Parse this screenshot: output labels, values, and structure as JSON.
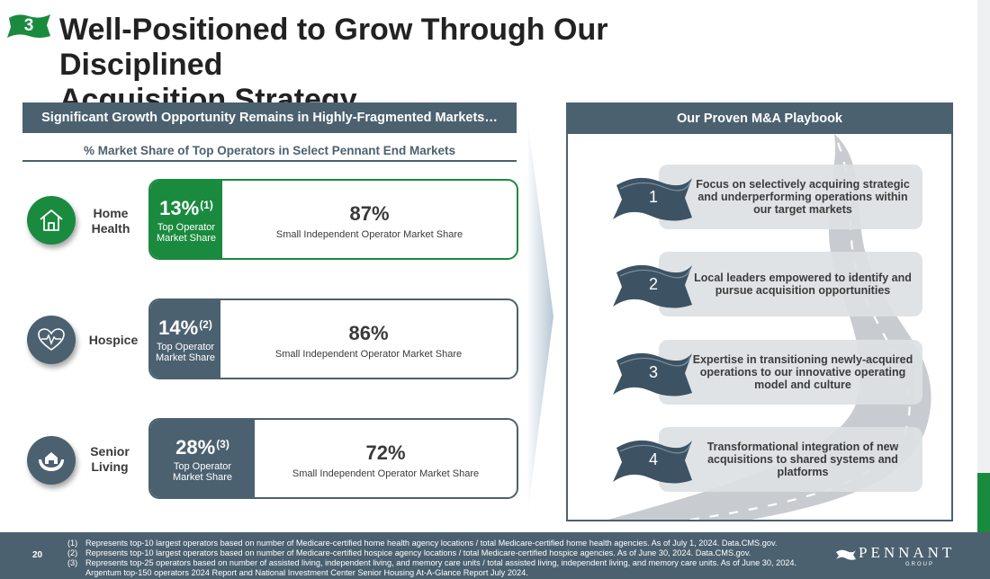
{
  "slide": {
    "section_number": "3",
    "title_line1": "Well-Positioned to Grow Through Our Disciplined",
    "title_line2": "Acquisition Strategy"
  },
  "left": {
    "header": "Significant Growth Opportunity Remains in Highly-Fragmented Markets…",
    "subheader": "% Market Share of Top Operators in Select Pennant End Markets",
    "markets": [
      {
        "label_line1": "Home",
        "label_line2": "Health",
        "icon": "house-icon",
        "top_share": "13%",
        "top_ref": "(1)",
        "top_caption_line1": "Top Operator",
        "top_caption_line2": "Market Share",
        "small_share": "87%",
        "small_caption": "Small Independent Operator Market Share",
        "accent": "#1a8a3f"
      },
      {
        "label_line1": "Hospice",
        "label_line2": "",
        "icon": "heart-pulse-icon",
        "top_share": "14%",
        "top_ref": "(2)",
        "top_caption_line1": "Top Operator",
        "top_caption_line2": "Market Share",
        "small_share": "86%",
        "small_caption": "Small Independent Operator Market Share",
        "accent": "#4b6170"
      },
      {
        "label_line1": "Senior",
        "label_line2": "Living",
        "icon": "hands-house-icon",
        "top_share": "28%",
        "top_ref": "(3)",
        "top_caption_line1": "Top Operator",
        "top_caption_line2": "Market Share",
        "small_share": "72%",
        "small_caption": "Small Independent Operator Market Share",
        "accent": "#4b6170"
      }
    ]
  },
  "right": {
    "header": "Our Proven M&A Playbook",
    "steps": [
      {
        "number": "1",
        "text": "Focus on selectively acquiring strategic and underperforming operations within our target markets"
      },
      {
        "number": "2",
        "text": "Local leaders empowered to identify and pursue acquisition opportunities"
      },
      {
        "number": "3",
        "text": "Expertise in transitioning newly-acquired operations to our innovative operating model and culture"
      },
      {
        "number": "4",
        "text": "Transformational integration of new acquisitions to shared systems and platforms"
      }
    ]
  },
  "footer": {
    "page_number": "20",
    "footnotes": [
      {
        "tag": "(1)",
        "text": "Represents top-10 largest operators based on number of Medicare-certified home health agency locations / total Medicare-certified home health agencies. As of July 1, 2024. Data.CMS.gov."
      },
      {
        "tag": "(2)",
        "text": "Represents top-10 largest operators based on number of Medicare-certified hospice agency locations / total Medicare-certified hospice agencies. As of June 30, 2024. Data.CMS.gov."
      },
      {
        "tag": "(3)",
        "text": "Represents top-25 operators based on number of assisted living, independent living, and memory care units / total assisted living, independent living, and memory care units. As of June 30, 2024."
      },
      {
        "tag": "",
        "text": "Argentum top-150 operators 2024 Report and National Investment Center Senior Housing At-A-Glance Report July 2024."
      }
    ],
    "logo_word": "PENNANT",
    "logo_sub": "GROUP"
  },
  "colors": {
    "slate": "#4b6170",
    "green": "#1a8a3f",
    "card": "#dde1e4",
    "road": "#c8ccd0"
  }
}
